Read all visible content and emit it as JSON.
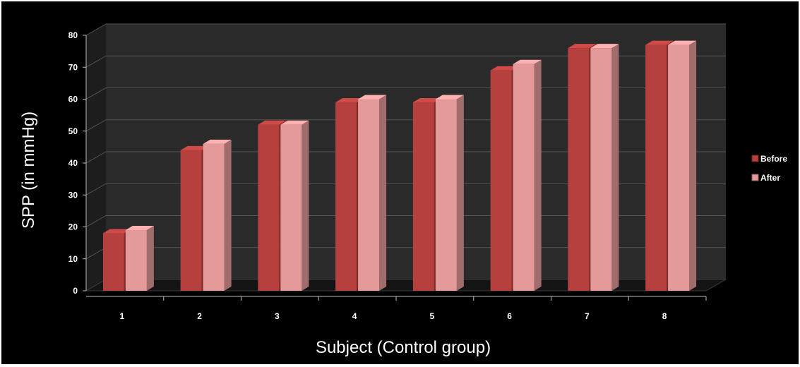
{
  "chart_data": {
    "type": "bar",
    "title": "",
    "xlabel": "Subject  (Control group)",
    "ylabel": "SPP (in mmHg)",
    "ylim": [
      0,
      80
    ],
    "yticks": [
      0,
      10,
      20,
      30,
      40,
      50,
      60,
      70,
      80
    ],
    "categories": [
      "1",
      "2",
      "3",
      "4",
      "5",
      "6",
      "7",
      "8"
    ],
    "series": [
      {
        "name": "Before",
        "values": [
          18,
          44,
          52,
          59,
          59,
          69,
          76,
          77
        ],
        "color": "#b5403e"
      },
      {
        "name": "After",
        "values": [
          19,
          46,
          52,
          60,
          60,
          71,
          76,
          77
        ],
        "color": "#e59a9a"
      }
    ],
    "grid": true,
    "legend_position": "right",
    "style": "3d-clustered-column"
  }
}
